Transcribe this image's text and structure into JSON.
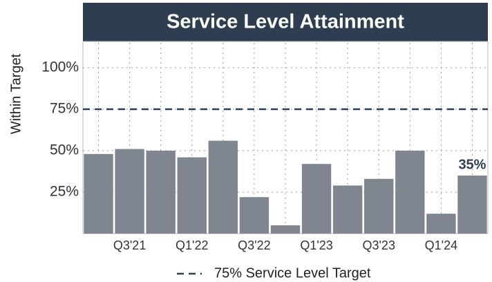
{
  "chart_data": {
    "type": "bar",
    "title": "Service Level Attainment",
    "y_label": "Within Target",
    "categories": [
      null,
      "Q3'21",
      null,
      "Q1'22",
      null,
      "Q3'22",
      null,
      "Q1'23",
      null,
      "Q3'23",
      null,
      "Q1'24",
      null
    ],
    "values": [
      48,
      51,
      50,
      46,
      56,
      22,
      5,
      42,
      29,
      33,
      50,
      12,
      35
    ],
    "value_labels": [
      null,
      null,
      null,
      null,
      null,
      null,
      null,
      null,
      null,
      null,
      null,
      null,
      "35%"
    ],
    "color": "#7f8690",
    "ylim": [
      0,
      115
    ],
    "yticks": [
      {
        "value": 25,
        "label": "25%"
      },
      {
        "value": 50,
        "label": "50%"
      },
      {
        "value": 75,
        "label": "75%"
      },
      {
        "value": 100,
        "label": "100%"
      }
    ],
    "grid": true,
    "reference_lines": [
      {
        "value": 75,
        "name": "75% Service Level Target",
        "color": "#2e3e50"
      }
    ]
  }
}
